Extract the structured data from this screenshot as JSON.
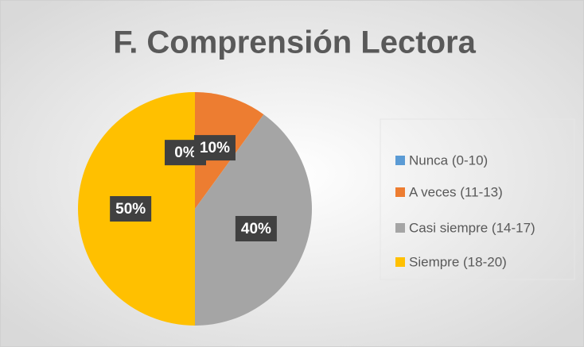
{
  "chart_data": {
    "type": "pie",
    "title": "F. Comprensión Lectora",
    "categories": [
      "Nunca (0-10)",
      "A veces (11-13)",
      "Casi siempre (14-17)",
      "Siempre (18-20)"
    ],
    "values": [
      0,
      10,
      40,
      50
    ],
    "value_labels": [
      "0%",
      "10%",
      "40%",
      "50%"
    ],
    "colors": [
      "#5B9BD5",
      "#ED7D31",
      "#A5A5A5",
      "#FFC000"
    ],
    "legend": "right"
  }
}
